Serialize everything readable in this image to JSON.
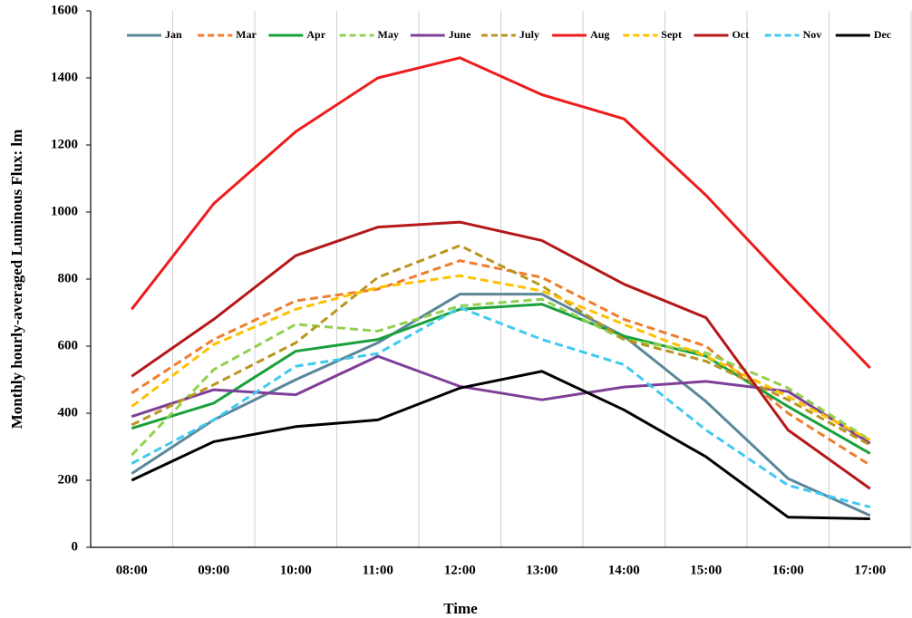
{
  "chart_data": {
    "type": "line",
    "x_label": "Time",
    "y_label": "Monthly hourly-averaged Luminous Flux: lm",
    "categories": [
      "08:00",
      "09:00",
      "10:00",
      "11:00",
      "12:00",
      "13:00",
      "14:00",
      "15:00",
      "16:00",
      "17:00"
    ],
    "ylim": [
      0,
      1600
    ],
    "yticks": [
      0,
      200,
      400,
      600,
      800,
      1000,
      1200,
      1400,
      1600
    ],
    "grid": "vertical",
    "legend": "top",
    "series": [
      {
        "name": "Jan",
        "color": "#5b8799",
        "dashed": false,
        "values": [
          220,
          380,
          500,
          610,
          755,
          755,
          630,
          435,
          205,
          95
        ]
      },
      {
        "name": "Mar",
        "color": "#ef7d2d",
        "dashed": true,
        "values": [
          460,
          620,
          735,
          770,
          855,
          805,
          680,
          600,
          400,
          245
        ]
      },
      {
        "name": "Apr",
        "color": "#1aa03c",
        "dashed": false,
        "values": [
          355,
          430,
          585,
          620,
          710,
          725,
          630,
          570,
          420,
          280
        ]
      },
      {
        "name": "May",
        "color": "#92d050",
        "dashed": true,
        "values": [
          275,
          530,
          665,
          645,
          720,
          740,
          620,
          580,
          475,
          320
        ]
      },
      {
        "name": "June",
        "color": "#7f3f98",
        "dashed": false,
        "values": [
          390,
          470,
          455,
          570,
          480,
          440,
          478,
          495,
          465,
          310
        ]
      },
      {
        "name": "July",
        "color": "#b8961e",
        "dashed": true,
        "values": [
          365,
          485,
          610,
          805,
          900,
          780,
          620,
          555,
          440,
          305
        ]
      },
      {
        "name": "Aug",
        "color": "#ee1c1c",
        "dashed": false,
        "values": [
          710,
          1025,
          1240,
          1400,
          1460,
          1350,
          1278,
          1050,
          790,
          535
        ]
      },
      {
        "name": "Sept",
        "color": "#ffc000",
        "dashed": true,
        "values": [
          420,
          605,
          710,
          775,
          810,
          765,
          665,
          570,
          450,
          320
        ]
      },
      {
        "name": "Oct",
        "color": "#b41818",
        "dashed": false,
        "values": [
          510,
          680,
          870,
          955,
          970,
          915,
          785,
          685,
          350,
          175
        ]
      },
      {
        "name": "Nov",
        "color": "#3fcaf0",
        "dashed": true,
        "values": [
          250,
          380,
          540,
          578,
          715,
          620,
          545,
          350,
          185,
          120
        ]
      },
      {
        "name": "Dec",
        "color": "#000000",
        "dashed": false,
        "values": [
          200,
          315,
          360,
          380,
          475,
          525,
          410,
          270,
          90,
          85
        ]
      }
    ]
  }
}
